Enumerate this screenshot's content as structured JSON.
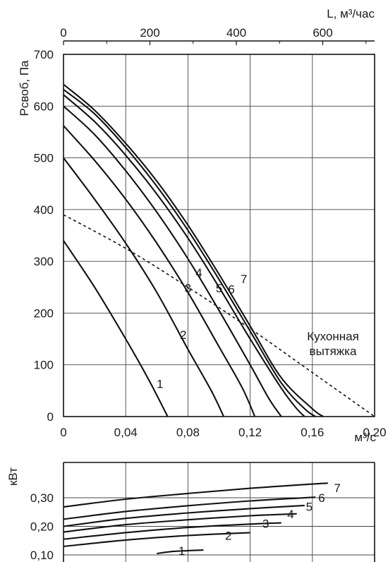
{
  "chart_data": [
    {
      "type": "line",
      "xlabel": "м³/с",
      "ylabel": "Pсвоб, Па",
      "x2label": "L, м³/час",
      "xlim": [
        0,
        0.2
      ],
      "ylim": [
        0,
        700
      ],
      "x2lim": [
        0,
        720
      ],
      "x_ticks": [
        0,
        0.04,
        0.08,
        0.12,
        0.16,
        0.2
      ],
      "x_tick_labels": [
        "0",
        "0,04",
        "0,08",
        "0,12",
        "0,16",
        "0,20"
      ],
      "y_ticks": [
        0,
        100,
        200,
        300,
        400,
        500,
        600,
        700
      ],
      "y_tick_labels": [
        "0",
        "100",
        "200",
        "300",
        "400",
        "500",
        "600",
        "700"
      ],
      "x2_ticks": [
        0,
        200,
        400,
        600
      ],
      "x2_tick_labels": [
        "0",
        "200",
        "400",
        "600"
      ],
      "grid": true,
      "series": [
        {
          "name": "1",
          "x": [
            0,
            0.02,
            0.04,
            0.055,
            0.067
          ],
          "y": [
            340,
            250,
            150,
            70,
            0
          ]
        },
        {
          "name": "2",
          "x": [
            0,
            0.02,
            0.04,
            0.06,
            0.08,
            0.095,
            0.103
          ],
          "y": [
            500,
            420,
            335,
            240,
            130,
            50,
            0
          ]
        },
        {
          "name": "3",
          "x": [
            0,
            0.02,
            0.04,
            0.06,
            0.08,
            0.1,
            0.115,
            0.123
          ],
          "y": [
            562,
            495,
            420,
            335,
            240,
            135,
            55,
            0
          ]
        },
        {
          "name": "4",
          "x": [
            0,
            0.02,
            0.04,
            0.06,
            0.08,
            0.1,
            0.12,
            0.132,
            0.14
          ],
          "y": [
            600,
            545,
            475,
            395,
            305,
            205,
            100,
            35,
            0
          ]
        },
        {
          "name": "5",
          "x": [
            0,
            0.02,
            0.04,
            0.06,
            0.08,
            0.1,
            0.12,
            0.14,
            0.15,
            0.155
          ],
          "y": [
            622,
            570,
            505,
            430,
            345,
            250,
            150,
            55,
            15,
            0
          ]
        },
        {
          "name": "6",
          "x": [
            0,
            0.02,
            0.04,
            0.06,
            0.08,
            0.1,
            0.12,
            0.14,
            0.155,
            0.162
          ],
          "y": [
            632,
            585,
            520,
            445,
            360,
            265,
            165,
            65,
            15,
            0
          ]
        },
        {
          "name": "7",
          "x": [
            0,
            0.02,
            0.04,
            0.06,
            0.08,
            0.1,
            0.12,
            0.14,
            0.16,
            0.167
          ],
          "y": [
            642,
            592,
            528,
            455,
            370,
            275,
            175,
            75,
            15,
            0
          ]
        }
      ],
      "reference_curve": {
        "name": "Кухонная вытяжка",
        "x": [
          0,
          0.04,
          0.08,
          0.12,
          0.16,
          0.2
        ],
        "y": [
          390,
          325,
          250,
          170,
          85,
          0
        ]
      },
      "annotations": [
        {
          "text": "1",
          "x": 0.062,
          "y": 55
        },
        {
          "text": "2",
          "x": 0.077,
          "y": 150
        },
        {
          "text": "3",
          "x": 0.08,
          "y": 240
        },
        {
          "text": "4",
          "x": 0.087,
          "y": 270
        },
        {
          "text": "5",
          "x": 0.1,
          "y": 240
        },
        {
          "text": "6",
          "x": 0.108,
          "y": 238
        },
        {
          "text": "7",
          "x": 0.116,
          "y": 258
        }
      ],
      "reference_label_lines": [
        "Кухонная",
        "вытяжка"
      ]
    },
    {
      "type": "line",
      "ylabel": "кВт",
      "xlim": [
        0,
        0.2
      ],
      "ylim": [
        0.1,
        0.36
      ],
      "y_ticks": [
        0.1,
        0.2,
        0.3
      ],
      "y_tick_labels": [
        "0,10",
        "0,20",
        "0,30"
      ],
      "grid": true,
      "series": [
        {
          "name": "1",
          "x": [
            0.06,
            0.07,
            0.08,
            0.09
          ],
          "y": [
            0.105,
            0.112,
            0.115,
            0.117
          ]
        },
        {
          "name": "2",
          "x": [
            0,
            0.04,
            0.08,
            0.12
          ],
          "y": [
            0.13,
            0.152,
            0.168,
            0.178
          ]
        },
        {
          "name": "3",
          "x": [
            0,
            0.04,
            0.08,
            0.12,
            0.14
          ],
          "y": [
            0.155,
            0.178,
            0.196,
            0.208,
            0.212
          ]
        },
        {
          "name": "4",
          "x": [
            0,
            0.04,
            0.08,
            0.12,
            0.15
          ],
          "y": [
            0.18,
            0.206,
            0.223,
            0.237,
            0.244
          ]
        },
        {
          "name": "5",
          "x": [
            0,
            0.04,
            0.08,
            0.12,
            0.155
          ],
          "y": [
            0.2,
            0.228,
            0.247,
            0.262,
            0.273
          ]
        },
        {
          "name": "6",
          "x": [
            0,
            0.04,
            0.08,
            0.12,
            0.162
          ],
          "y": [
            0.225,
            0.252,
            0.272,
            0.289,
            0.302
          ]
        },
        {
          "name": "7",
          "x": [
            0,
            0.04,
            0.08,
            0.12,
            0.16,
            0.17
          ],
          "y": [
            0.268,
            0.295,
            0.315,
            0.333,
            0.348,
            0.351
          ]
        }
      ],
      "annotations": [
        {
          "text": "1",
          "x": 0.076,
          "y": 0.115
        },
        {
          "text": "2",
          "x": 0.106,
          "y": 0.168
        },
        {
          "text": "3",
          "x": 0.13,
          "y": 0.21
        },
        {
          "text": "4",
          "x": 0.146,
          "y": 0.243
        },
        {
          "text": "5",
          "x": 0.158,
          "y": 0.269
        },
        {
          "text": "6",
          "x": 0.166,
          "y": 0.3
        },
        {
          "text": "7",
          "x": 0.176,
          "y": 0.335
        }
      ]
    }
  ]
}
